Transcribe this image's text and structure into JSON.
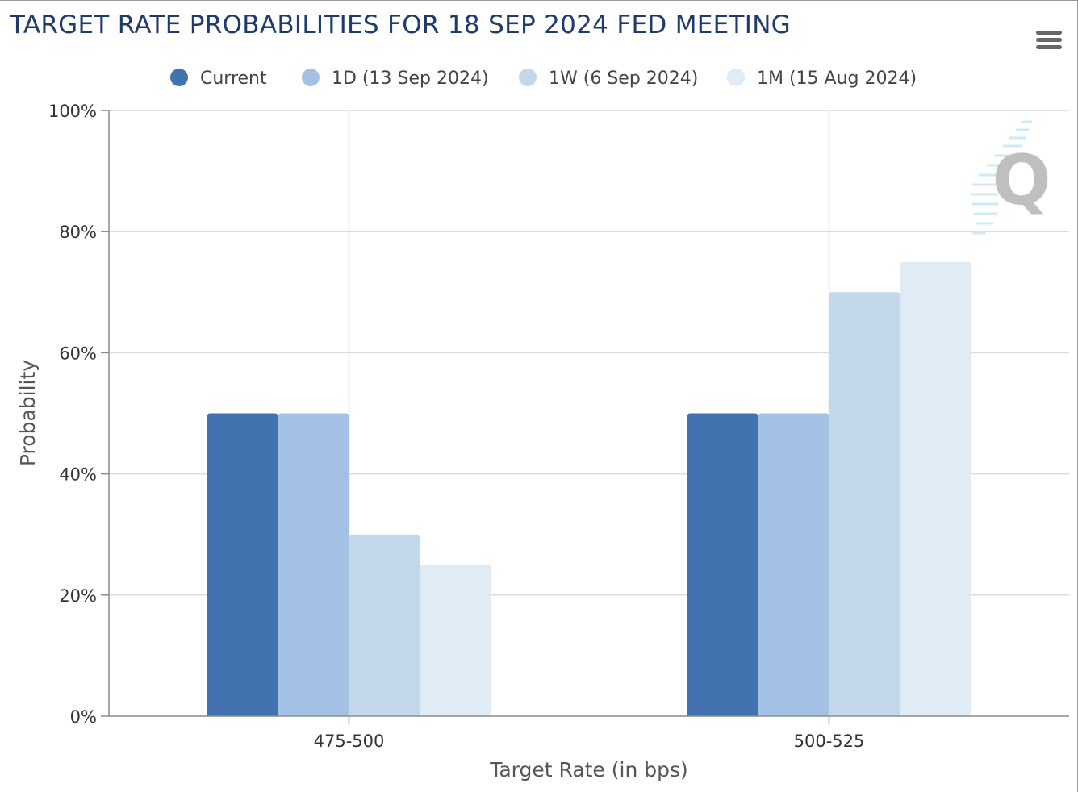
{
  "header": {
    "title": "TARGET RATE PROBABILITIES FOR 18 SEP 2024 FED MEETING",
    "menu_icon": "hamburger-menu-icon"
  },
  "watermark": {
    "letter": "Q",
    "color": "#bfbfbf",
    "stripe_color": "#cfe9f7"
  },
  "chart_data": {
    "type": "bar",
    "title": "TARGET RATE PROBABILITIES FOR 18 SEP 2024 FED MEETING",
    "xlabel": "Target Rate (in bps)",
    "ylabel": "Probability",
    "categories": [
      "475-500",
      "500-525"
    ],
    "ylim": [
      0,
      100
    ],
    "yticks": [
      0,
      20,
      40,
      60,
      80,
      100
    ],
    "ytick_labels": [
      "0%",
      "20%",
      "40%",
      "60%",
      "80%",
      "100%"
    ],
    "grid": true,
    "legend_position": "top-center",
    "series": [
      {
        "name": "Current",
        "color": "#4272b0",
        "values": [
          50,
          50
        ]
      },
      {
        "name": "1D (13 Sep 2024)",
        "color": "#a3c1e4",
        "values": [
          50,
          50
        ]
      },
      {
        "name": "1W (6 Sep 2024)",
        "color": "#c4d8ec",
        "values": [
          30,
          70
        ]
      },
      {
        "name": "1M (15 Aug 2024)",
        "color": "#e1ebf5",
        "values": [
          25,
          75
        ]
      }
    ]
  }
}
